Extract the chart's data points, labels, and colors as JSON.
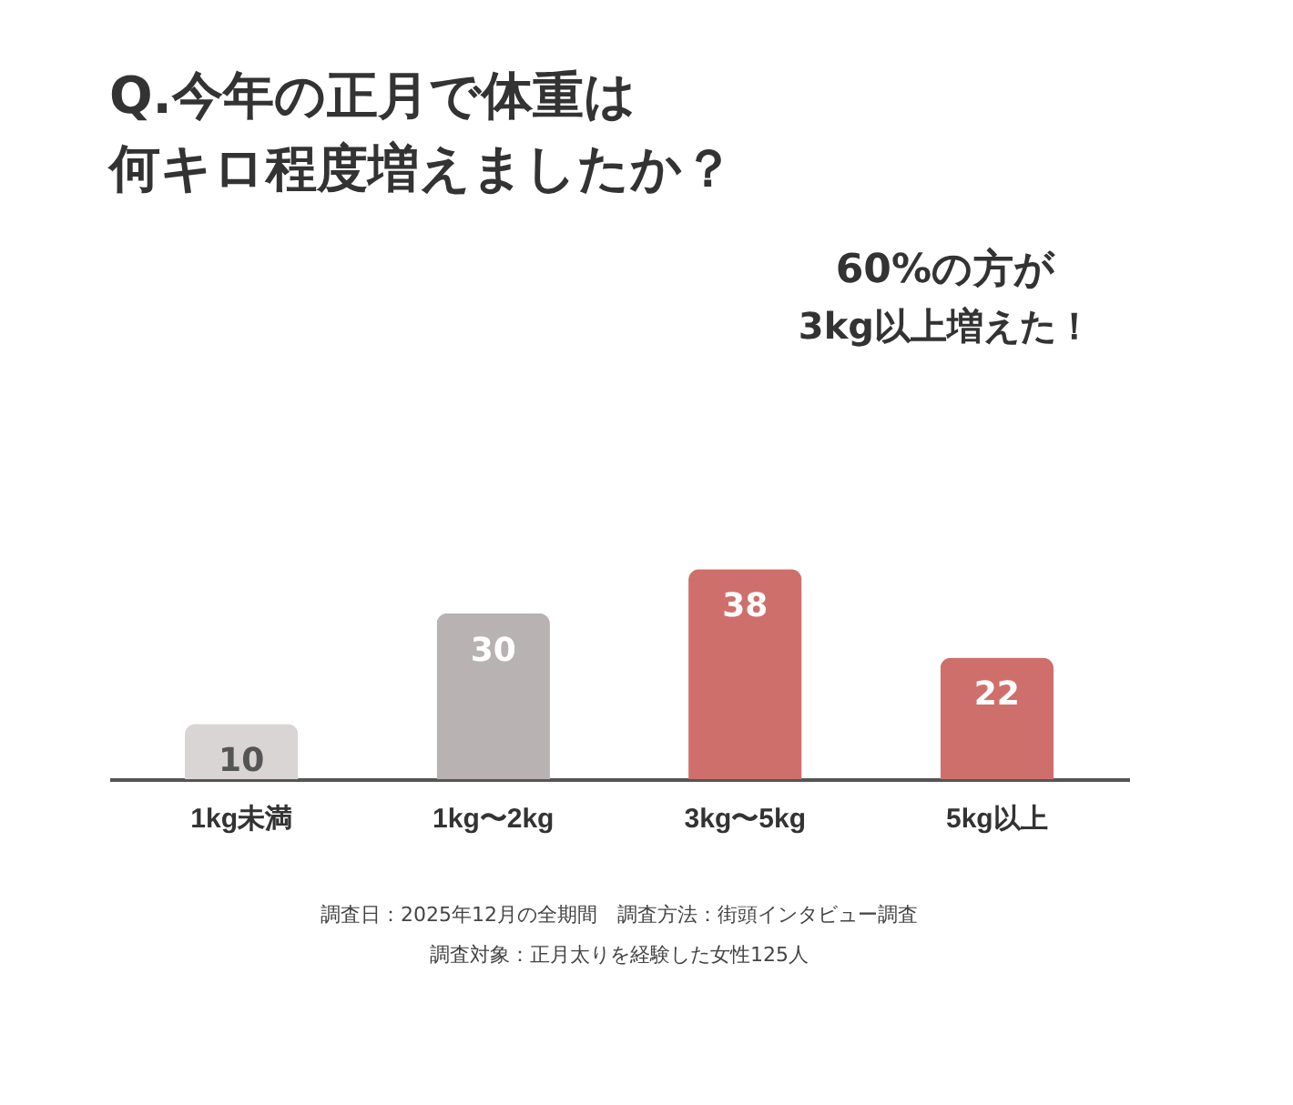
{
  "chart_data": {
    "type": "bar",
    "title": "Q.今年の正月で体重は何キロ程度増えましたか？",
    "categories": [
      "1kg未満",
      "1kg〜2kg",
      "3kg〜5kg",
      "5kg以上"
    ],
    "values": [
      10,
      30,
      38,
      22
    ],
    "colors": [
      "#d9d5d5",
      "#b8b2b2",
      "#cf6f6b",
      "#cf6f6b"
    ],
    "data_labels": true,
    "annotations": [
      "60%の方が",
      "3kg以上増えた！",
      "調査日：2025年12月の全期間　調査方法：街頭インタビュー調査",
      "調査対象：正月太りを経験した女性125人"
    ]
  }
}
